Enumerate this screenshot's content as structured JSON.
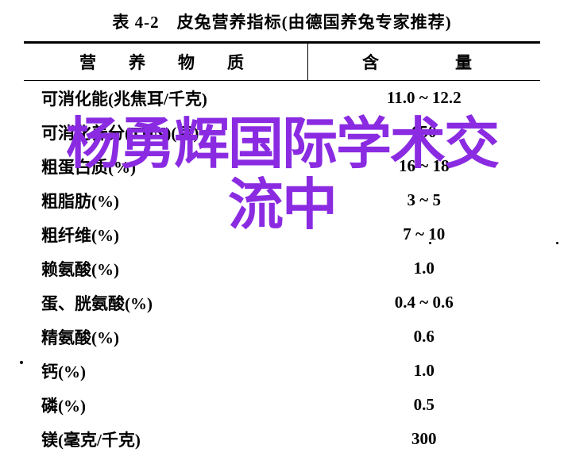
{
  "title": "表 4-2　皮兔营养指标(由德国养兔专家推荐)",
  "header": {
    "col1": "营　养　物　质",
    "col2": "含　　量"
  },
  "rows": [
    {
      "nutrient": "可消化能(兆焦耳/千克)",
      "amount": "11.0 ~ 12.2"
    },
    {
      "nutrient": "可消化养分(TDN)(克)",
      "amount": "650"
    },
    {
      "nutrient": "粗蛋白质(%)",
      "amount": "16 ~ 18"
    },
    {
      "nutrient": "粗脂肪(%)",
      "amount": "3 ~ 5"
    },
    {
      "nutrient": "粗纤维(%)",
      "amount": "7 ~ 10"
    },
    {
      "nutrient": "赖氨酸(%)",
      "amount": "1.0"
    },
    {
      "nutrient": "蛋、胱氨酸(%)",
      "amount": "0.4 ~ 0.6"
    },
    {
      "nutrient": "精氨酸(%)",
      "amount": "0.6"
    },
    {
      "nutrient": "钙(%)",
      "amount": "1.0"
    },
    {
      "nutrient": "磷(%)",
      "amount": "0.5"
    },
    {
      "nutrient": "镁(毫克/千克)",
      "amount": "300"
    }
  ],
  "watermark": {
    "line1": "杨勇辉国际学术交",
    "line2": "流中",
    "color": "#8a2be2"
  },
  "colors": {
    "text": "#000000",
    "background": "#ffffff",
    "watermark": "#8a2be2"
  },
  "typography": {
    "title_fontsize": 21,
    "header_fontsize": 21,
    "body_fontsize": 21,
    "watermark_fontsize": 70
  }
}
